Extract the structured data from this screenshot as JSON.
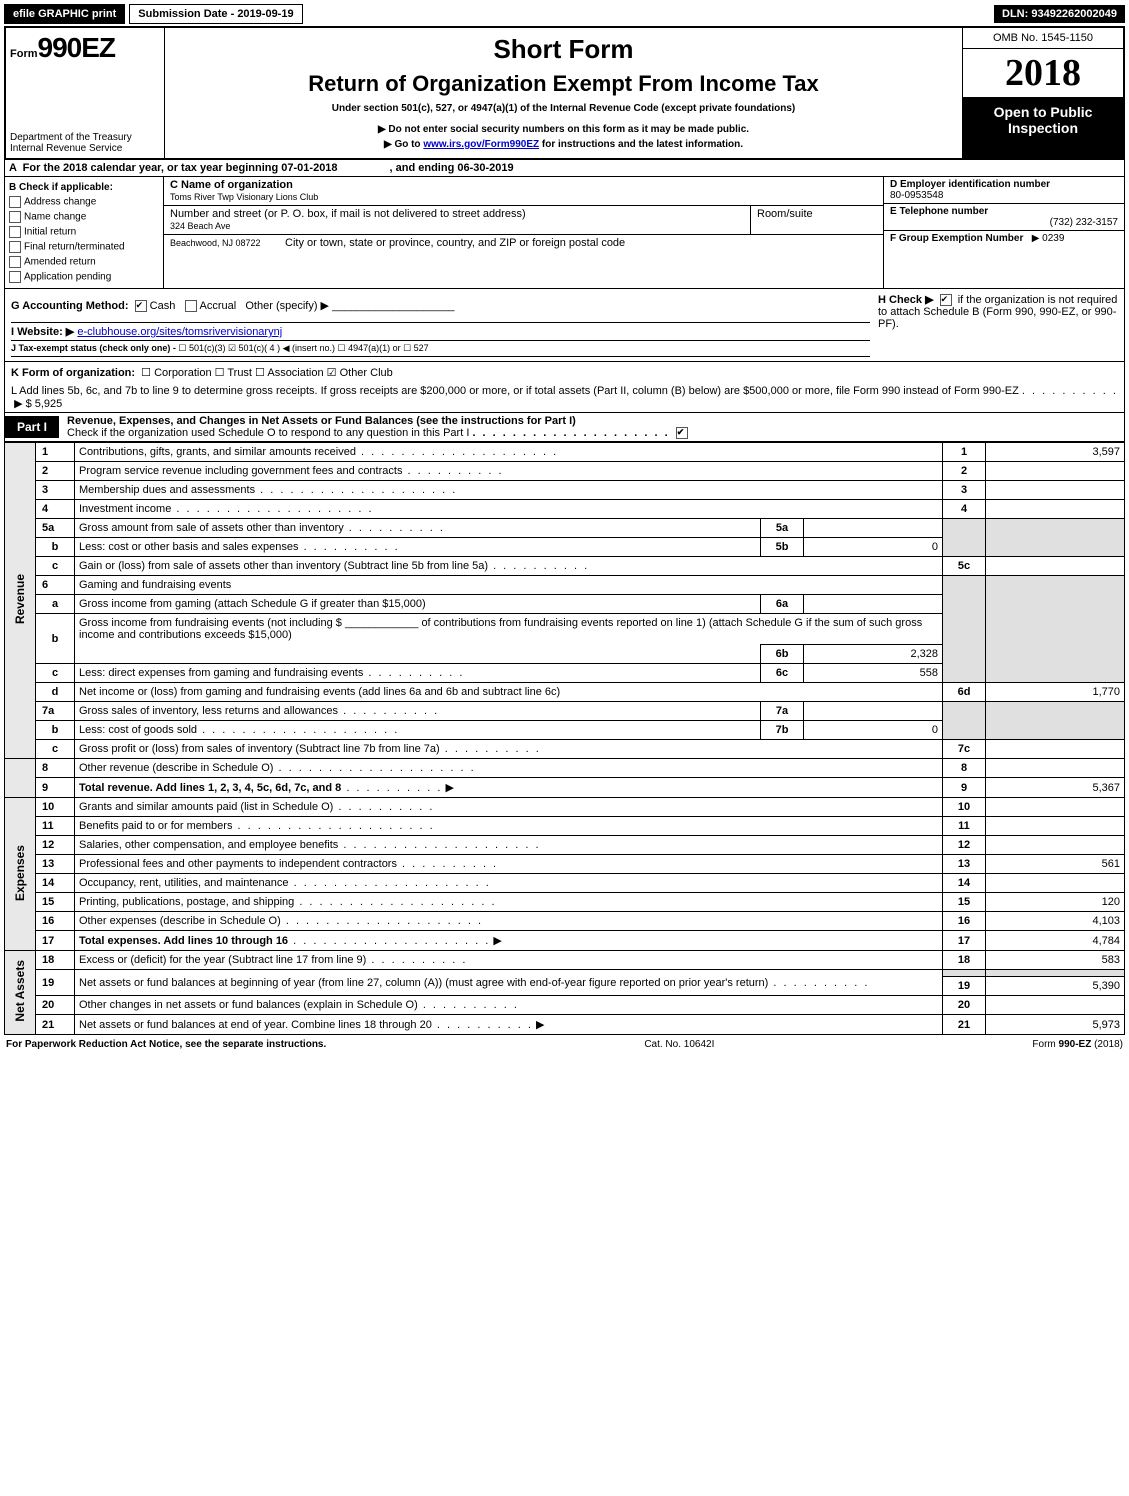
{
  "topbar": {
    "efile_btn": "efile GRAPHIC print",
    "submission_label": "Submission Date - 2019-09-19",
    "dln": "DLN: 93492262002049"
  },
  "header": {
    "form_prefix": "Form",
    "form_number": "990EZ",
    "dept1": "Department of the Treasury",
    "dept2": "Internal Revenue Service",
    "short_form": "Short Form",
    "return_title": "Return of Organization Exempt From Income Tax",
    "under_section": "Under section 501(c), 527, or 4947(a)(1) of the Internal Revenue Code (except private foundations)",
    "arrow1": "Do not enter social security numbers on this form as it may be made public.",
    "arrow2_pre": "Go to ",
    "arrow2_link": "www.irs.gov/Form990EZ",
    "arrow2_post": " for instructions and the latest information.",
    "omb": "OMB No. 1545-1150",
    "year": "2018",
    "open_public": "Open to Public Inspection"
  },
  "line_a": {
    "prefix": "A",
    "text_pre": "For the 2018 calendar year, or tax year beginning 07-01-2018",
    "text_post": ", and ending 06-30-2019"
  },
  "section_b": {
    "title": "B  Check if applicable:",
    "opts": [
      "Address change",
      "Name change",
      "Initial return",
      "Final return/terminated",
      "Amended return",
      "Application pending"
    ],
    "c_label": "C Name of organization",
    "c_value": "Toms River Twp Visionary Lions Club",
    "street_label": "Number and street (or P. O. box, if mail is not delivered to street address)",
    "street_value": "324 Beach Ave",
    "room_label": "Room/suite",
    "city_label": "City or town, state or province, country, and ZIP or foreign postal code",
    "city_value": "Beachwood, NJ  08722",
    "d_label": "D Employer identification number",
    "d_value": "80-0953548",
    "e_label": "E Telephone number",
    "e_value": "(732) 232-3157",
    "f_label": "F Group Exemption Number",
    "f_value": "▶ 0239"
  },
  "mid": {
    "g_label": "G Accounting Method:",
    "g_opts": [
      "Cash",
      "Accrual",
      "Other (specify) ▶"
    ],
    "h_label": "H  Check ▶",
    "h_text": "if the organization is not required to attach Schedule B (Form 990, 990-EZ, or 990-PF).",
    "i_label": "I Website: ▶",
    "i_value": "e-clubhouse.org/sites/tomsrivervisionarynj",
    "j_label": "J Tax-exempt status (check only one) -",
    "j_opts": "☐ 501(c)(3)  ☑ 501(c)( 4 ) ◀ (insert no.)  ☐ 4947(a)(1) or  ☐ 527",
    "k_label": "K Form of organization:",
    "k_opts": "☐ Corporation   ☐ Trust   ☐ Association   ☑ Other Club",
    "l_text_pre": "L Add lines 5b, 6c, and 7b to line 9 to determine gross receipts. If gross receipts are $200,000 or more, or if total assets (Part II, column (B) below) are $500,000 or more, file Form 990 instead of Form 990-EZ",
    "l_text_post": "▶ $ 5,925"
  },
  "part1": {
    "label": "Part I",
    "title": "Revenue, Expenses, and Changes in Net Assets or Fund Balances (see the instructions for Part I)",
    "check_text": "Check if the organization used Schedule O to respond to any question in this Part I"
  },
  "sides": {
    "revenue": "Revenue",
    "expenses": "Expenses",
    "netassets": "Net Assets"
  },
  "lines": {
    "l1": {
      "num": "1",
      "desc": "Contributions, gifts, grants, and similar amounts received",
      "tnum": "1",
      "tval": "3,597"
    },
    "l2": {
      "num": "2",
      "desc": "Program service revenue including government fees and contracts",
      "tnum": "2",
      "tval": ""
    },
    "l3": {
      "num": "3",
      "desc": "Membership dues and assessments",
      "tnum": "3",
      "tval": ""
    },
    "l4": {
      "num": "4",
      "desc": "Investment income",
      "tnum": "4",
      "tval": ""
    },
    "l5a": {
      "num": "5a",
      "desc": "Gross amount from sale of assets other than inventory",
      "snum": "5a",
      "sval": ""
    },
    "l5b": {
      "num": "b",
      "desc": "Less: cost or other basis and sales expenses",
      "snum": "5b",
      "sval": "0"
    },
    "l5c": {
      "num": "c",
      "desc": "Gain or (loss) from sale of assets other than inventory (Subtract line 5b from line 5a)",
      "tnum": "5c",
      "tval": ""
    },
    "l6": {
      "num": "6",
      "desc": "Gaming and fundraising events"
    },
    "l6a": {
      "num": "a",
      "desc": "Gross income from gaming (attach Schedule G if greater than $15,000)",
      "snum": "6a",
      "sval": ""
    },
    "l6b": {
      "num": "b",
      "desc_pre": "Gross income from fundraising events (not including $ ",
      "desc_post": " of contributions from fundraising events reported on line 1) (attach Schedule G if the sum of such gross income and contributions exceeds $15,000)",
      "snum": "6b",
      "sval": "2,328"
    },
    "l6c": {
      "num": "c",
      "desc": "Less: direct expenses from gaming and fundraising events",
      "snum": "6c",
      "sval": "558"
    },
    "l6d": {
      "num": "d",
      "desc": "Net income or (loss) from gaming and fundraising events (add lines 6a and 6b and subtract line 6c)",
      "tnum": "6d",
      "tval": "1,770"
    },
    "l7a": {
      "num": "7a",
      "desc": "Gross sales of inventory, less returns and allowances",
      "snum": "7a",
      "sval": ""
    },
    "l7b": {
      "num": "b",
      "desc": "Less: cost of goods sold",
      "snum": "7b",
      "sval": "0"
    },
    "l7c": {
      "num": "c",
      "desc": "Gross profit or (loss) from sales of inventory (Subtract line 7b from line 7a)",
      "tnum": "7c",
      "tval": ""
    },
    "l8": {
      "num": "8",
      "desc": "Other revenue (describe in Schedule O)",
      "tnum": "8",
      "tval": ""
    },
    "l9": {
      "num": "9",
      "desc": "Total revenue. Add lines 1, 2, 3, 4, 5c, 6d, 7c, and 8",
      "tnum": "9",
      "tval": "5,367"
    },
    "l10": {
      "num": "10",
      "desc": "Grants and similar amounts paid (list in Schedule O)",
      "tnum": "10",
      "tval": ""
    },
    "l11": {
      "num": "11",
      "desc": "Benefits paid to or for members",
      "tnum": "11",
      "tval": ""
    },
    "l12": {
      "num": "12",
      "desc": "Salaries, other compensation, and employee benefits",
      "tnum": "12",
      "tval": ""
    },
    "l13": {
      "num": "13",
      "desc": "Professional fees and other payments to independent contractors",
      "tnum": "13",
      "tval": "561"
    },
    "l14": {
      "num": "14",
      "desc": "Occupancy, rent, utilities, and maintenance",
      "tnum": "14",
      "tval": ""
    },
    "l15": {
      "num": "15",
      "desc": "Printing, publications, postage, and shipping",
      "tnum": "15",
      "tval": "120"
    },
    "l16": {
      "num": "16",
      "desc": "Other expenses (describe in Schedule O)",
      "tnum": "16",
      "tval": "4,103"
    },
    "l17": {
      "num": "17",
      "desc": "Total expenses. Add lines 10 through 16",
      "tnum": "17",
      "tval": "4,784"
    },
    "l18": {
      "num": "18",
      "desc": "Excess or (deficit) for the year (Subtract line 17 from line 9)",
      "tnum": "18",
      "tval": "583"
    },
    "l19": {
      "num": "19",
      "desc": "Net assets or fund balances at beginning of year (from line 27, column (A)) (must agree with end-of-year figure reported on prior year's return)",
      "tnum": "19",
      "tval": "5,390"
    },
    "l20": {
      "num": "20",
      "desc": "Other changes in net assets or fund balances (explain in Schedule O)",
      "tnum": "20",
      "tval": ""
    },
    "l21": {
      "num": "21",
      "desc": "Net assets or fund balances at end of year. Combine lines 18 through 20",
      "tnum": "21",
      "tval": "5,973"
    }
  },
  "footer": {
    "left": "For Paperwork Reduction Act Notice, see the separate instructions.",
    "center": "Cat. No. 10642I",
    "right": "Form 990-EZ (2018)"
  }
}
